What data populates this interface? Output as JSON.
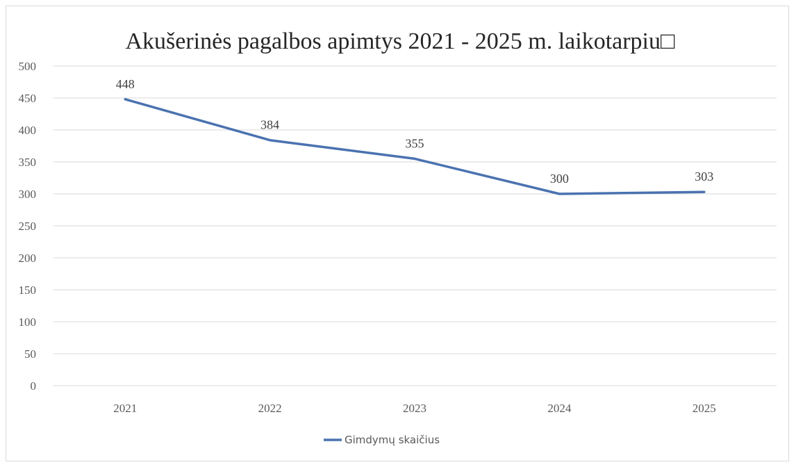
{
  "chart_data": {
    "type": "line",
    "title": "Akušerinės pagalbos apimtys 2021 - 2025 m. laikotarpiu□",
    "xlabel": "",
    "ylabel": "",
    "categories": [
      "2021",
      "2022",
      "2023",
      "2024",
      "2025"
    ],
    "series": [
      {
        "name": "Gimdymų skaičius",
        "values": [
          448,
          384,
          355,
          300,
          303
        ],
        "color": "#4a72b0"
      }
    ],
    "ylim": [
      0,
      500
    ],
    "yticks": [
      0,
      50,
      100,
      150,
      200,
      250,
      300,
      350,
      400,
      450,
      500
    ],
    "grid": true,
    "data_labels": true,
    "legend": "bottom"
  }
}
